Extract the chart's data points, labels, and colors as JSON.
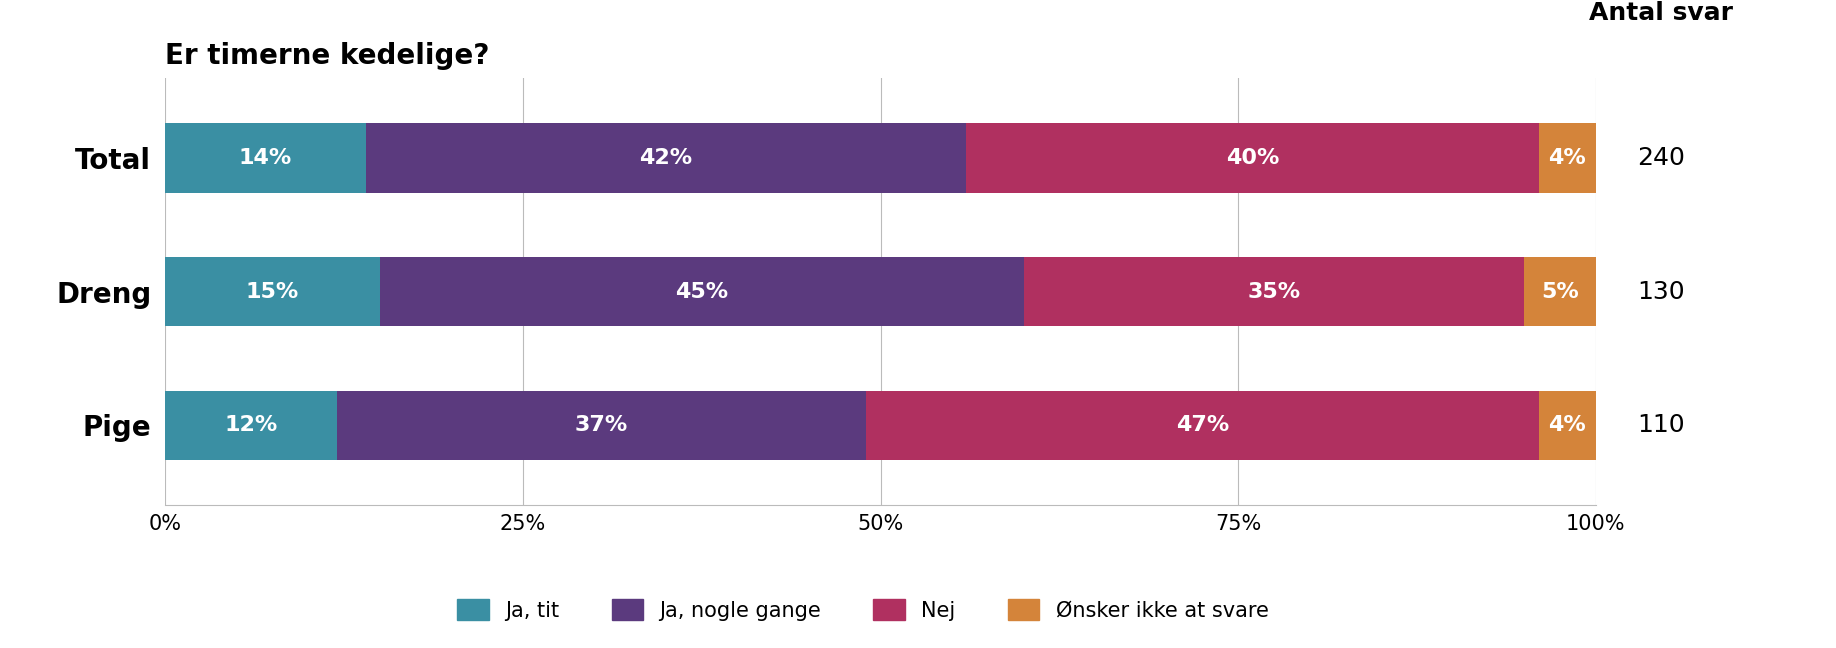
{
  "title": "Er timerne kedelige?",
  "antal_svar_label": "Antal svar",
  "categories": [
    "Total",
    "Dreng",
    "Pige"
  ],
  "antal_svar": [
    "240",
    "130",
    "110"
  ],
  "series": [
    {
      "label": "Ja, tit",
      "color": "#3a8fa3",
      "values": [
        14,
        15,
        12
      ]
    },
    {
      "label": "Ja, nogle gange",
      "color": "#5b3a7e",
      "values": [
        42,
        45,
        37
      ]
    },
    {
      "label": "Nej",
      "color": "#b03060",
      "values": [
        40,
        35,
        47
      ]
    },
    {
      "label": "Ønsker ikke at svare",
      "color": "#d4843a",
      "values": [
        4,
        5,
        4
      ]
    }
  ],
  "xticks": [
    0,
    25,
    50,
    75,
    100
  ],
  "xtick_labels": [
    "0%",
    "25%",
    "50%",
    "75%",
    "100%"
  ],
  "bar_height": 0.52,
  "figsize": [
    18.36,
    6.48
  ],
  "dpi": 100,
  "text_color_inside": "#ffffff",
  "text_color_outside": "#000000",
  "background_color": "#ffffff",
  "title_fontsize": 20,
  "tick_fontsize": 15,
  "legend_fontsize": 15,
  "bar_label_fontsize": 16,
  "antal_fontsize": 18,
  "category_fontsize": 20,
  "grid_color": "#bbbbbb"
}
